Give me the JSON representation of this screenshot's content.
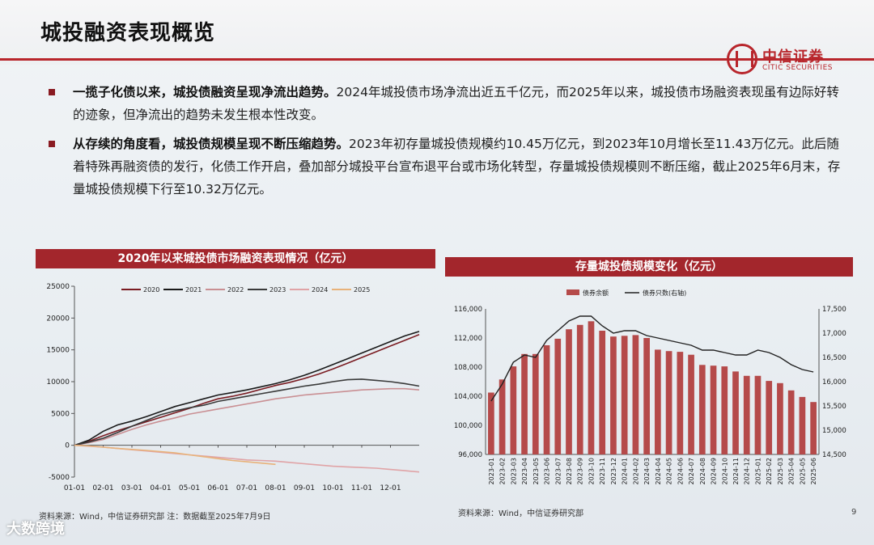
{
  "title": "城投融资表现概览",
  "logo": {
    "cn": "中信证券",
    "en": "CITIC SECURITIES",
    "icon": "citic-logo-icon"
  },
  "bullets": [
    {
      "lead": "一揽子化债以来，城投债融资呈现净流出趋势。",
      "text": "2024年城投债市场净流出近五千亿元，而2025年以来，城投债市场融资表现虽有边际好转的迹象，但净流出的趋势未发生根本性改变。"
    },
    {
      "lead": "从存续的角度看，城投债规模呈现不断压缩趋势。",
      "text": "2023年初存量城投债规模约10.45万亿元，到2023年10月增长至11.43万亿元。此后随着特殊再融资债的发行，化债工作开启，叠加部分城投平台宣布退平台或市场化转型，存量城投债规模则不断压缩，截止2025年6月末，存量城投债规模下行至10.32万亿元。"
    }
  ],
  "left_panel": {
    "header": "2020年以来城投债市场融资表现情况（亿元）",
    "source": "资料来源：Wind，中信证券研究部 注：数据截至2025年7月9日"
  },
  "right_panel": {
    "header": "存量城投债规模变化（亿元）",
    "source": "资料来源：Wind，中信证券研究部"
  },
  "page_number": "9",
  "watermark": "大数跨境",
  "colors": {
    "brand_red": "#b8252b",
    "bar_red": "#b54a4a",
    "line_dark": "#222222"
  },
  "chart_data": [
    {
      "type": "line",
      "title": "2020年以来城投债市场融资表现情况（亿元）",
      "xlabel": "",
      "ylabel": "",
      "x_ticks": [
        "01-01",
        "02-01",
        "03-01",
        "04-01",
        "05-01",
        "06-01",
        "07-01",
        "08-01",
        "09-01",
        "10-01",
        "11-01",
        "12-01"
      ],
      "x_range": [
        0,
        12
      ],
      "ylim": [
        -5000,
        25000
      ],
      "y_ticks": [
        -5000,
        0,
        5000,
        10000,
        15000,
        20000,
        25000
      ],
      "y_tick_labels": [
        "-5000",
        "0",
        "5000",
        "10000",
        "15000",
        "20000",
        "25000"
      ],
      "legend_position": "top",
      "x": [
        0,
        0.5,
        1,
        1.5,
        2,
        2.5,
        3,
        3.5,
        4,
        4.5,
        5,
        5.5,
        6,
        6.5,
        7,
        7.5,
        8,
        8.5,
        9,
        9.5,
        10,
        10.5,
        11,
        11.5,
        12,
        12.5
      ],
      "series": [
        {
          "name": "2020",
          "color": "#7a1c22",
          "values": [
            0,
            600,
            1500,
            2300,
            3000,
            3700,
            4400,
            5100,
            5800,
            6600,
            7300,
            7700,
            8200,
            8800,
            9400,
            9900,
            10500,
            11200,
            12000,
            12900,
            13800,
            14700,
            15600,
            16500,
            17400,
            18000
          ]
        },
        {
          "name": "2021",
          "color": "#1a1a1a",
          "values": [
            0,
            800,
            2200,
            3200,
            3800,
            4500,
            5300,
            6100,
            6700,
            7300,
            7900,
            8300,
            8700,
            9200,
            9700,
            10300,
            11000,
            11800,
            12700,
            13600,
            14500,
            15400,
            16300,
            17200,
            17900,
            18400
          ]
        },
        {
          "name": "2022",
          "color": "#c98f93",
          "values": [
            0,
            400,
            900,
            1700,
            2500,
            3200,
            3800,
            4300,
            4900,
            5300,
            5700,
            6100,
            6500,
            6900,
            7300,
            7600,
            7900,
            8100,
            8300,
            8500,
            8700,
            8800,
            8900,
            8900,
            8700,
            8400
          ]
        },
        {
          "name": "2023",
          "color": "#3a3a3a",
          "values": [
            0,
            500,
            1100,
            2000,
            3000,
            3900,
            4800,
            5400,
            5900,
            6300,
            6900,
            7300,
            7700,
            8100,
            8500,
            8900,
            9300,
            9600,
            10000,
            10300,
            10400,
            10200,
            10000,
            9700,
            9300,
            8900
          ]
        },
        {
          "name": "2024",
          "color": "#e0a3a6",
          "values": [
            0,
            -150,
            -300,
            -500,
            -700,
            -900,
            -1100,
            -1300,
            -1500,
            -1700,
            -1900,
            -2100,
            -2300,
            -2400,
            -2500,
            -2700,
            -2900,
            -3100,
            -3300,
            -3400,
            -3500,
            -3600,
            -3800,
            -4000,
            -4200,
            -4400
          ]
        },
        {
          "name": "2025",
          "color": "#e8b27a",
          "values": [
            0,
            -100,
            -300,
            -500,
            -650,
            -800,
            -1000,
            -1200,
            -1500,
            -1800,
            -2100,
            -2400,
            -2600,
            -2800,
            -3000,
            null,
            null,
            null,
            null,
            null,
            null,
            null,
            null,
            null,
            null,
            null
          ]
        }
      ]
    },
    {
      "type": "bar",
      "title": "存量城投债规模变化（亿元）",
      "xlabel": "",
      "ylabel": "",
      "categories": [
        "2023-01",
        "2023-02",
        "2023-03",
        "2023-04",
        "2023-05",
        "2023-06",
        "2023-07",
        "2023-08",
        "2023-09",
        "2023-10",
        "2023-11",
        "2023-12",
        "2024-01",
        "2024-02",
        "2024-03",
        "2024-04",
        "2024-05",
        "2024-06",
        "2024-07",
        "2024-08",
        "2024-09",
        "2024-10",
        "2024-11",
        "2024-12",
        "2025-01",
        "2025-02",
        "2025-03",
        "2025-04",
        "2025-05",
        "2025-06"
      ],
      "ylim": [
        96000,
        116000
      ],
      "y_ticks": [
        96000,
        100000,
        104000,
        108000,
        112000,
        116000
      ],
      "y_tick_labels": [
        "96,000",
        "100,000",
        "104,000",
        "108,000",
        "112,000",
        "116,000"
      ],
      "y2lim": [
        14500,
        17500
      ],
      "y2_ticks": [
        14500,
        15000,
        15500,
        16000,
        16500,
        17000,
        17500
      ],
      "y2_tick_labels": [
        "14,500",
        "15,000",
        "15,500",
        "16,000",
        "16,500",
        "17,000",
        "17,500"
      ],
      "legend_position": "top",
      "series": [
        {
          "name": "债券余额",
          "axis": "left",
          "kind": "bar",
          "color": "#b54a4a",
          "values": [
            104500,
            106300,
            108100,
            109800,
            109800,
            111000,
            111900,
            113200,
            113800,
            114300,
            113000,
            112200,
            112300,
            112400,
            112000,
            110400,
            110200,
            110100,
            109700,
            108300,
            108200,
            108100,
            107400,
            106800,
            106800,
            106100,
            105800,
            104800,
            103900,
            103200
          ]
        },
        {
          "name": "债券只数(右轴)",
          "axis": "right",
          "kind": "line",
          "color": "#222222",
          "values": [
            15600,
            15950,
            16400,
            16550,
            16500,
            16850,
            17050,
            17250,
            17350,
            17350,
            17150,
            17000,
            17050,
            17050,
            16950,
            16900,
            16850,
            16800,
            16750,
            16650,
            16650,
            16600,
            16550,
            16550,
            16650,
            16600,
            16500,
            16350,
            16250,
            16200
          ]
        }
      ]
    }
  ]
}
